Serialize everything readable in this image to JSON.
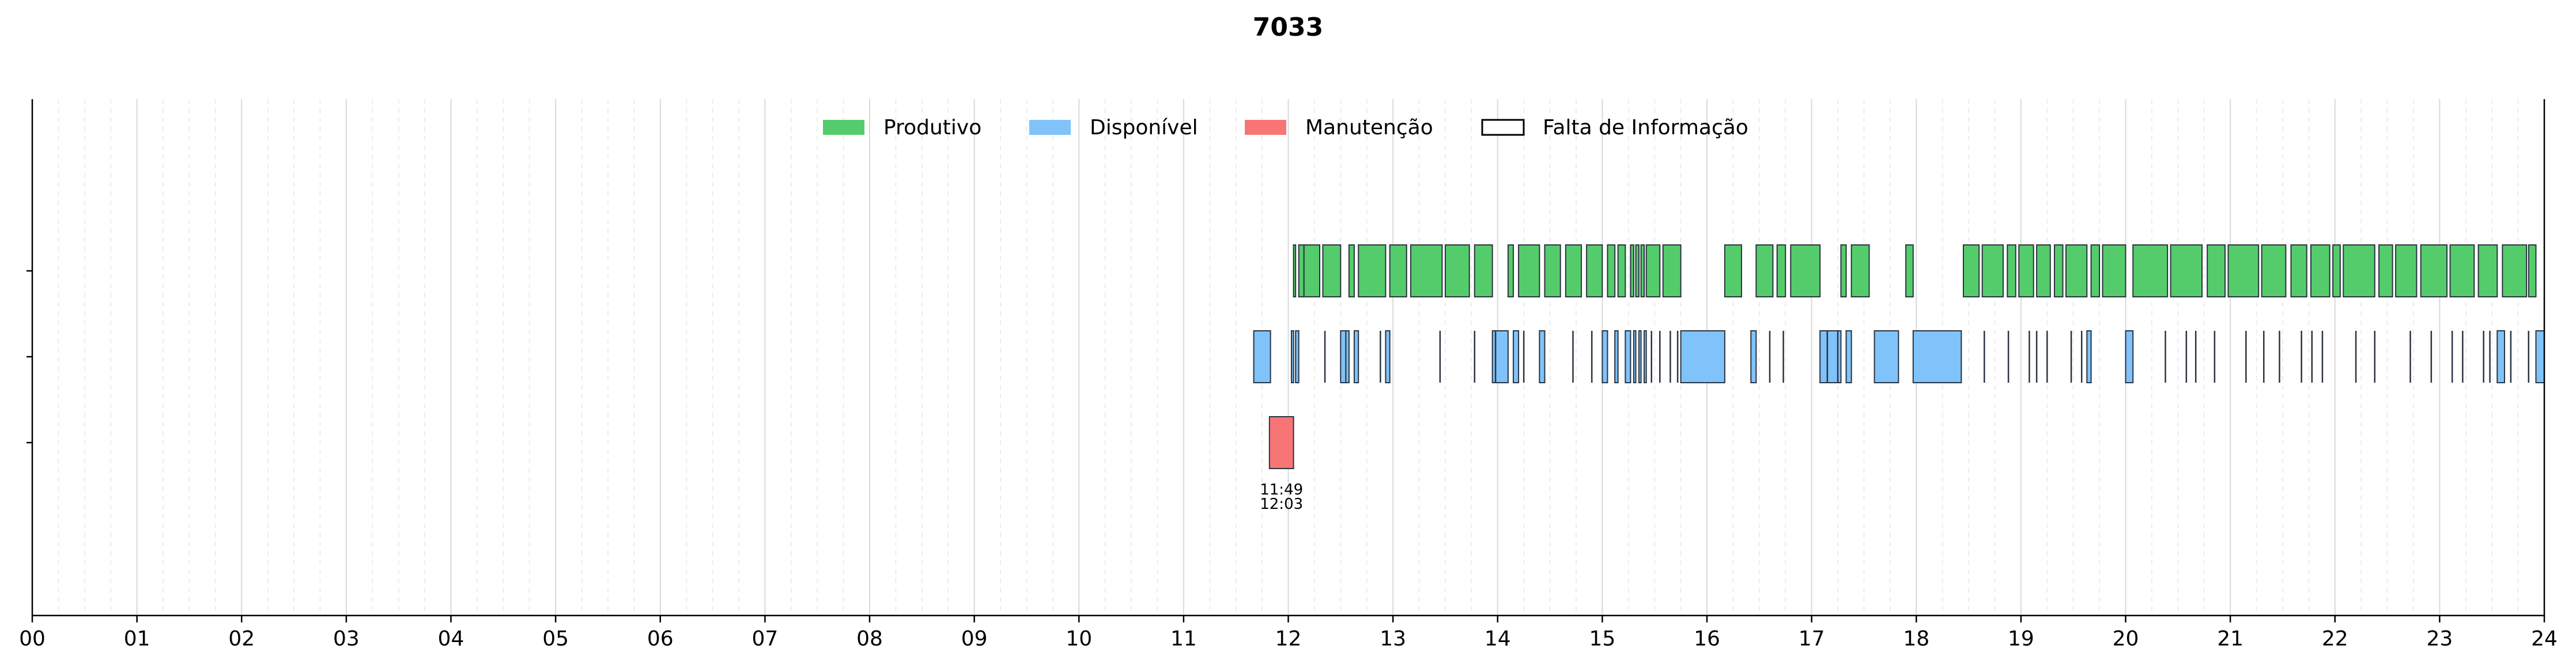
{
  "chart_data": {
    "type": "timeline",
    "title": "7033",
    "xlim": [
      0,
      24
    ],
    "x_ticks": [
      "00",
      "01",
      "02",
      "03",
      "04",
      "05",
      "06",
      "07",
      "08",
      "09",
      "10",
      "11",
      "12",
      "13",
      "14",
      "15",
      "16",
      "17",
      "18",
      "19",
      "20",
      "21",
      "22",
      "23",
      "24"
    ],
    "grid": {
      "major": "hourly",
      "minor": "every 15 minutes",
      "axis": "x"
    },
    "legend": {
      "placement": "top-center",
      "orientation": "horizontal"
    },
    "series": [
      {
        "name": "Produtivo",
        "color": "#55cc6b",
        "intervals": [
          [
            12.05,
            12.07
          ],
          [
            12.1,
            12.15
          ],
          [
            12.15,
            12.3
          ],
          [
            12.33,
            12.5
          ],
          [
            12.58,
            12.63
          ],
          [
            12.67,
            12.93
          ],
          [
            12.97,
            13.13
          ],
          [
            13.17,
            13.47
          ],
          [
            13.5,
            13.73
          ],
          [
            13.78,
            13.95
          ],
          [
            14.1,
            14.15
          ],
          [
            14.2,
            14.4
          ],
          [
            14.45,
            14.6
          ],
          [
            14.65,
            14.8
          ],
          [
            14.85,
            15.0
          ],
          [
            15.05,
            15.12
          ],
          [
            15.15,
            15.22
          ],
          [
            15.27,
            15.3
          ],
          [
            15.32,
            15.35
          ],
          [
            15.37,
            15.4
          ],
          [
            15.42,
            15.55
          ],
          [
            15.58,
            15.75
          ],
          [
            16.17,
            16.33
          ],
          [
            16.47,
            16.63
          ],
          [
            16.67,
            16.75
          ],
          [
            16.8,
            17.08
          ],
          [
            17.28,
            17.33
          ],
          [
            17.38,
            17.55
          ],
          [
            17.9,
            17.97
          ],
          [
            18.45,
            18.6
          ],
          [
            18.63,
            18.83
          ],
          [
            18.87,
            18.95
          ],
          [
            18.98,
            19.12
          ],
          [
            19.15,
            19.28
          ],
          [
            19.32,
            19.4
          ],
          [
            19.43,
            19.63
          ],
          [
            19.67,
            19.75
          ],
          [
            19.78,
            20.0
          ],
          [
            20.07,
            20.4
          ],
          [
            20.43,
            20.73
          ],
          [
            20.78,
            20.95
          ],
          [
            20.98,
            21.27
          ],
          [
            21.3,
            21.53
          ],
          [
            21.58,
            21.73
          ],
          [
            21.77,
            21.95
          ],
          [
            21.98,
            22.05
          ],
          [
            22.08,
            22.38
          ],
          [
            22.42,
            22.55
          ],
          [
            22.58,
            22.78
          ],
          [
            22.82,
            23.07
          ],
          [
            23.1,
            23.33
          ],
          [
            23.37,
            23.55
          ],
          [
            23.6,
            23.83
          ],
          [
            23.85,
            23.92
          ]
        ]
      },
      {
        "name": "Disponível",
        "color": "#7fc3fa",
        "intervals": [
          [
            11.67,
            11.83
          ],
          [
            12.03,
            12.05
          ],
          [
            12.07,
            12.1
          ],
          [
            12.5,
            12.55
          ],
          [
            12.55,
            12.58
          ],
          [
            12.63,
            12.67
          ],
          [
            12.93,
            12.97
          ],
          [
            13.95,
            14.1
          ],
          [
            14.15,
            14.2
          ],
          [
            14.4,
            14.45
          ],
          [
            15.0,
            15.05
          ],
          [
            15.12,
            15.15
          ],
          [
            15.22,
            15.27
          ],
          [
            15.3,
            15.32
          ],
          [
            15.35,
            15.37
          ],
          [
            15.4,
            15.42
          ],
          [
            15.75,
            16.17
          ],
          [
            16.42,
            16.47
          ],
          [
            17.08,
            17.28
          ],
          [
            17.33,
            17.38
          ],
          [
            17.6,
            17.83
          ],
          [
            17.97,
            18.43
          ],
          [
            19.63,
            19.67
          ],
          [
            20.0,
            20.07
          ],
          [
            23.55,
            23.62
          ],
          [
            23.92,
            24.0
          ]
        ],
        "ticks": [
          12.35,
          12.88,
          13.45,
          13.78,
          13.98,
          14.25,
          14.72,
          14.9,
          15.47,
          15.55,
          15.65,
          15.72,
          16.6,
          16.73,
          17.15,
          17.25,
          18.65,
          18.88,
          19.08,
          19.15,
          19.25,
          19.48,
          19.58,
          20.38,
          20.58,
          20.67,
          20.85,
          21.15,
          21.32,
          21.47,
          21.68,
          21.78,
          21.88,
          22.2,
          22.38,
          22.72,
          22.92,
          23.12,
          23.22,
          23.42,
          23.48,
          23.68,
          23.85
        ]
      },
      {
        "name": "Manutenção",
        "color": "#f87575",
        "intervals": [
          [
            11.82,
            12.05
          ]
        ],
        "labels": [
          {
            "start": "11:49",
            "end": "12:03"
          }
        ]
      },
      {
        "name": "Falta de Informação",
        "color": "#ffffff",
        "intervals": []
      }
    ]
  }
}
